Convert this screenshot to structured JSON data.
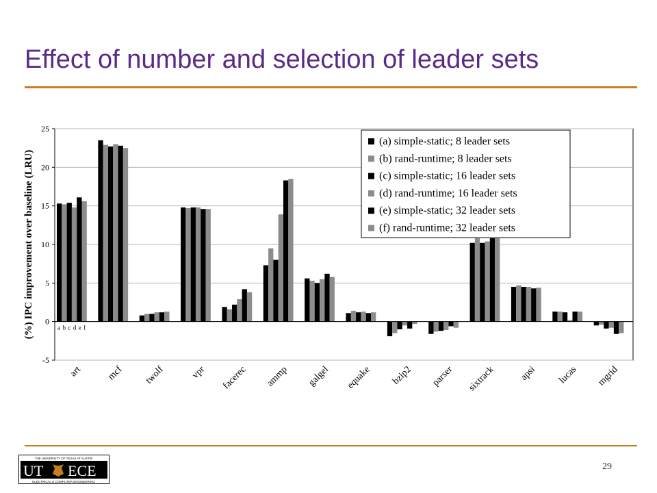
{
  "slide": {
    "title": "Effect of number and selection of leader sets",
    "page_number": "29"
  },
  "logo": {
    "left_text": "UT",
    "right_text": "ECE",
    "top_text": "THE UNIVERSITY OF TEXAS AT AUSTIN",
    "bottom_text": "ELECTRICAL & COMPUTER ENGINEERING"
  },
  "colors": {
    "title": "#5b2a86",
    "rule": "#c77f1e",
    "dark_series": "#000000",
    "light_series": "#8c8c8c"
  },
  "chart_data": {
    "type": "bar",
    "title": "",
    "xlabel": "",
    "ylabel": "(%) IPC improvement over baseline (LRU)",
    "ylim": [
      -5,
      25
    ],
    "yticks": [
      -5,
      0,
      5,
      10,
      15,
      20,
      25
    ],
    "grid": true,
    "legend_position": "top-right",
    "bar_letters": "abcdef",
    "categories": [
      "art",
      "mcf",
      "twolf",
      "vpr",
      "facerec",
      "ammp",
      "galgel",
      "equake",
      "bzip2",
      "parser",
      "sixtrack",
      "apsi",
      "lucas",
      "mgrid"
    ],
    "series": [
      {
        "name": "(a) simple-static; 8 leader sets",
        "color": "#000000",
        "values": [
          15.3,
          23.5,
          0.8,
          14.8,
          1.9,
          7.3,
          5.6,
          1.1,
          -1.9,
          -1.6,
          10.2,
          4.5,
          1.3,
          -0.5
        ]
      },
      {
        "name": "(b) rand-runtime; 8 leader sets",
        "color": "#8c8c8c",
        "values": [
          15.2,
          22.9,
          1.0,
          14.7,
          1.6,
          9.5,
          5.3,
          1.4,
          -1.5,
          -1.3,
          10.8,
          4.7,
          1.3,
          -0.4
        ]
      },
      {
        "name": "(c) simple-static; 16 leader sets",
        "color": "#000000",
        "values": [
          15.4,
          22.7,
          1.0,
          14.8,
          2.2,
          8.0,
          5.0,
          1.2,
          -1.0,
          -1.2,
          10.2,
          4.5,
          1.2,
          -0.9
        ]
      },
      {
        "name": "(d) rand-runtime; 16 leader sets",
        "color": "#8c8c8c",
        "values": [
          14.8,
          23.0,
          1.2,
          14.8,
          2.9,
          13.9,
          5.5,
          1.3,
          -0.5,
          -1.1,
          10.4,
          4.5,
          0.2,
          -0.8
        ]
      },
      {
        "name": "(e) simple-static; 32 leader sets",
        "color": "#000000",
        "values": [
          16.1,
          22.8,
          1.2,
          14.6,
          4.2,
          18.3,
          6.2,
          1.1,
          -0.9,
          -0.6,
          10.8,
          4.3,
          1.3,
          -1.6
        ]
      },
      {
        "name": "(f) rand-runtime; 32 leader sets",
        "color": "#8c8c8c",
        "values": [
          15.6,
          22.5,
          1.3,
          14.6,
          3.8,
          18.5,
          5.8,
          1.2,
          -0.3,
          -0.8,
          10.8,
          4.4,
          1.3,
          -1.5
        ]
      }
    ]
  }
}
